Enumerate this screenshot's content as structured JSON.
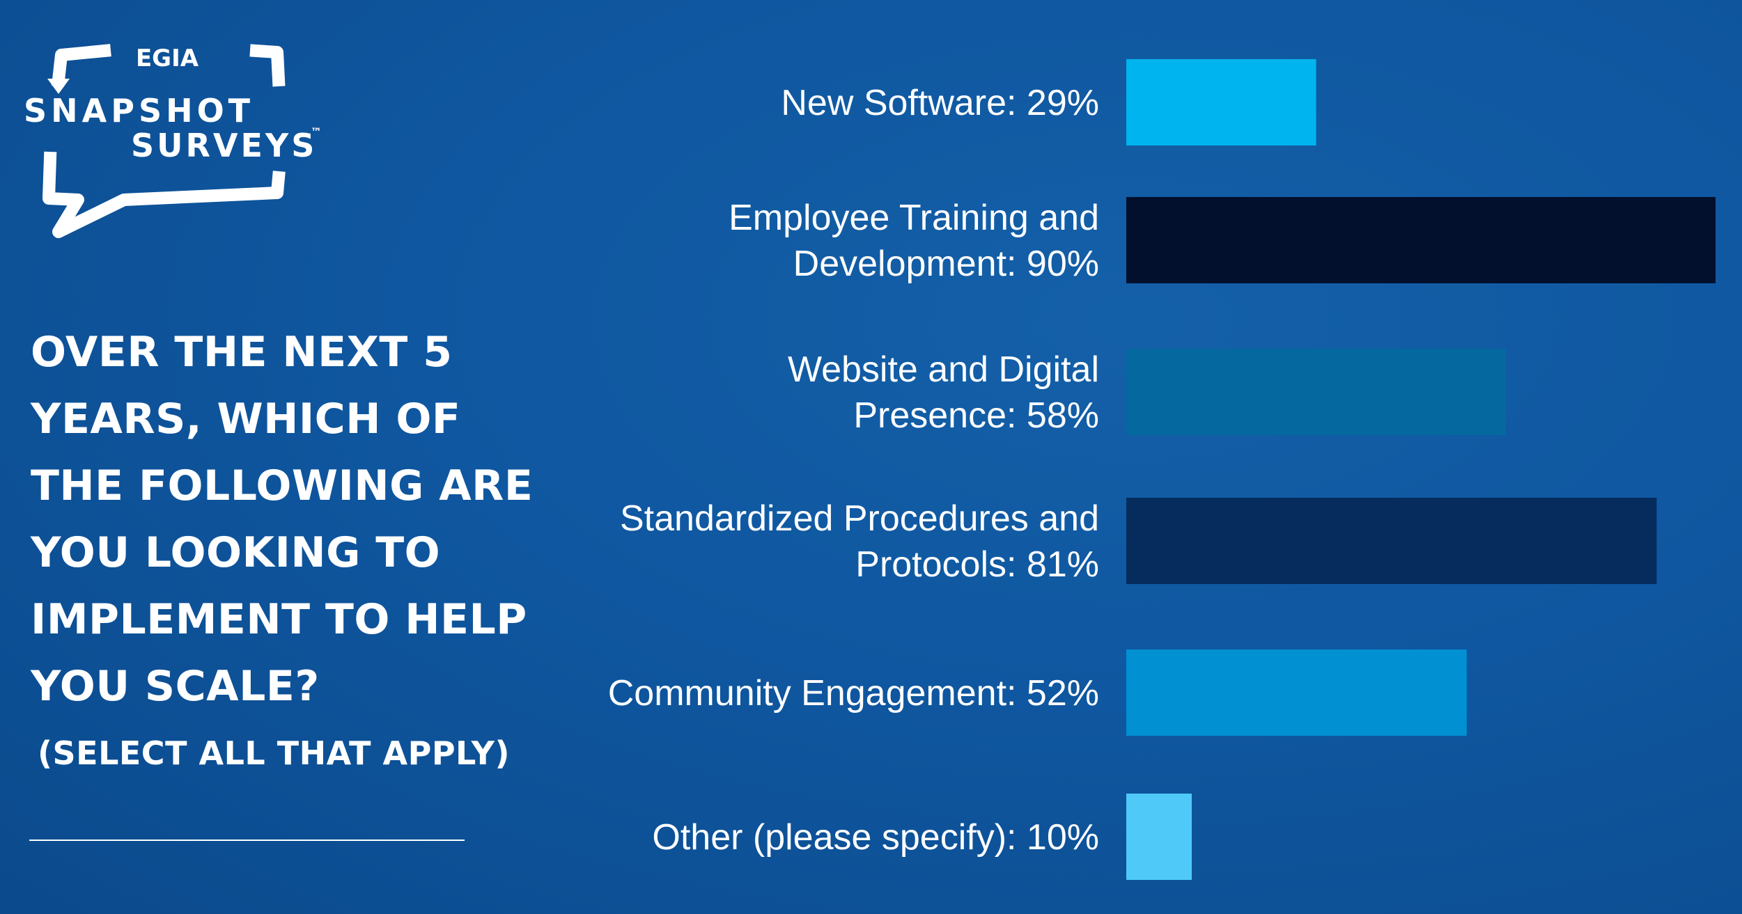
{
  "logo": {
    "top": "EGIA",
    "line1": "SNAPSHOT",
    "line2": "SURVEYS",
    "tm": "™"
  },
  "question": "OVER THE NEXT 5 YEARS, WHICH OF THE FOLLOWING ARE YOU LOOKING TO IMPLEMENT TO HELP YOU SCALE?",
  "instruction": "(SELECT ALL THAT APPLY)",
  "chart_data": {
    "type": "bar",
    "orientation": "horizontal",
    "unit": "%",
    "xlim": [
      0,
      100
    ],
    "grid": false,
    "legend": "none",
    "categories": [
      "New Software",
      "Employee Training and Development",
      "Website and Digital Presence",
      "Standardized Procedures and Protocols",
      "Community Engagement",
      "Other (please specify)"
    ],
    "values": [
      29,
      90,
      58,
      81,
      52,
      10
    ],
    "labels": [
      [
        "New Software: 29%"
      ],
      [
        "Employee Training and",
        "Development: 90%"
      ],
      [
        "Website and Digital",
        "Presence: 58%"
      ],
      [
        "Standardized Procedures and",
        "Protocols: 81%"
      ],
      [
        "Community Engagement: 52%"
      ],
      [
        "Other (please specify): 10%"
      ]
    ],
    "colors": [
      "#00b4ef",
      "#02102d",
      "#05689f",
      "#052c5c",
      "#0190d2",
      "#4fcaf8"
    ]
  }
}
